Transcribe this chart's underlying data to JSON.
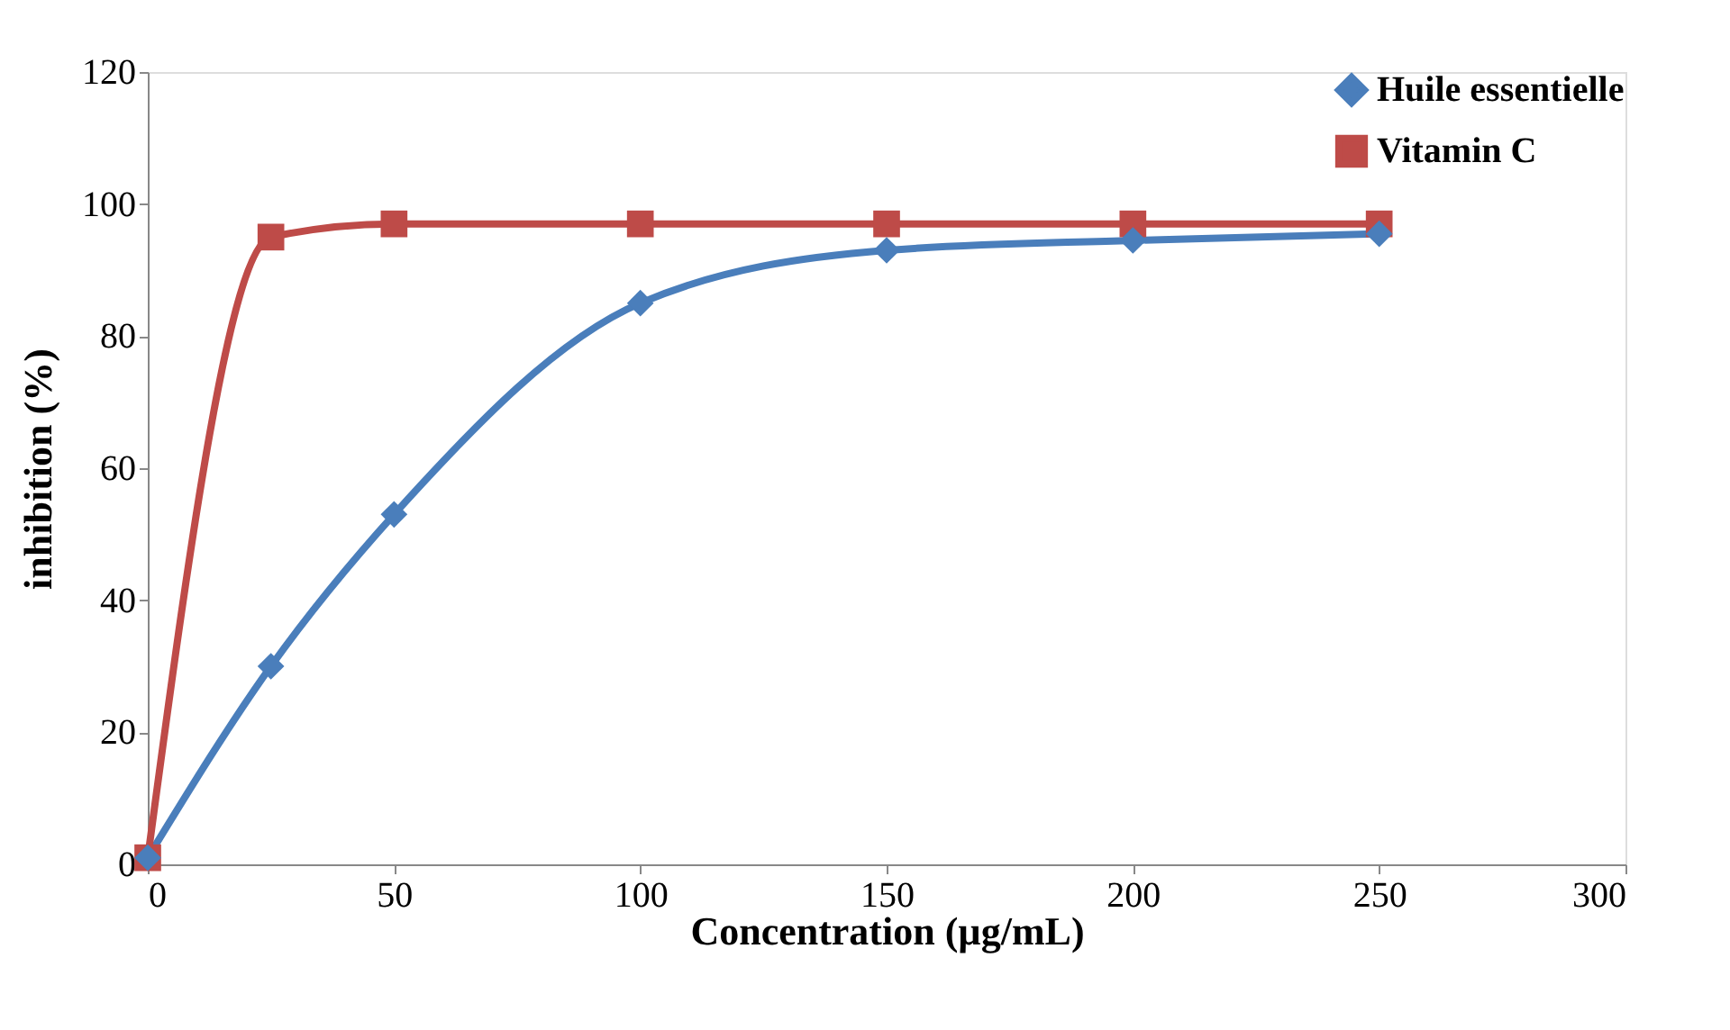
{
  "chart_data": {
    "type": "line",
    "xlabel": "Concentration  (µg/mL)",
    "ylabel": "inhibition  (%)",
    "x": [
      0,
      25,
      50,
      100,
      150,
      200,
      250
    ],
    "series": [
      {
        "name": "Huile essentielle",
        "color": "#4a7ebb",
        "marker": "diamond",
        "values": [
          1,
          30,
          53,
          85,
          93,
          94.5,
          95.5
        ]
      },
      {
        "name": "Vitamin C",
        "color": "#be4b48",
        "marker": "square",
        "values": [
          1,
          95,
          97,
          97,
          97,
          97,
          97
        ]
      }
    ],
    "xlim": [
      0,
      300
    ],
    "xticks": [
      0,
      50,
      100,
      150,
      200,
      250,
      300
    ],
    "ylim": [
      0,
      120
    ],
    "yticks": [
      0,
      20,
      40,
      60,
      80,
      100,
      120
    ],
    "grid": false,
    "legend": "top right",
    "line_style": "solid"
  }
}
